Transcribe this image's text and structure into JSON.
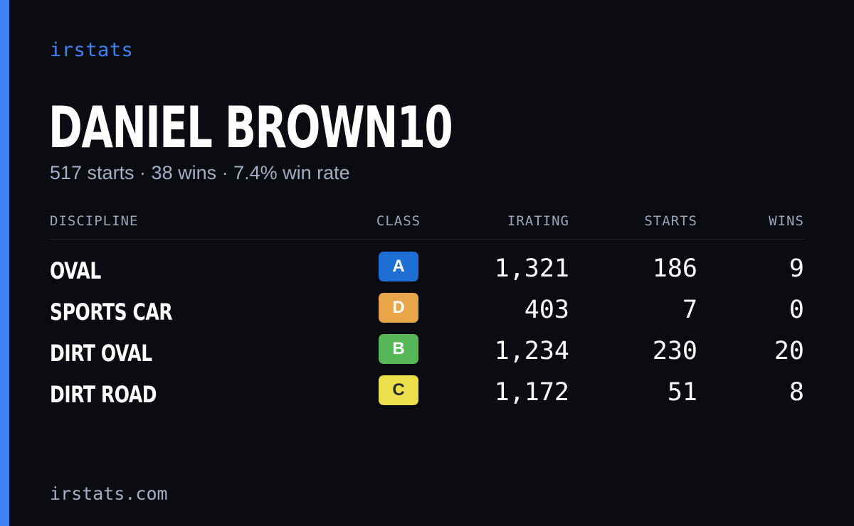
{
  "brand": {
    "name": "irstats"
  },
  "player": {
    "name": "DANIEL BROWN10",
    "summary": "517 starts · 38 wins · 7.4% win rate"
  },
  "table": {
    "headers": {
      "discipline": "DISCIPLINE",
      "class": "CLASS",
      "irating": "IRATING",
      "starts": "STARTS",
      "wins": "WINS"
    },
    "rows": [
      {
        "discipline": "OVAL",
        "class": "A",
        "class_color": "#1f6ed4",
        "class_text_color": "#ffffff",
        "irating": "1,321",
        "starts": "186",
        "wins": "9"
      },
      {
        "discipline": "SPORTS CAR",
        "class": "D",
        "class_color": "#e8a64a",
        "class_text_color": "#ffffff",
        "irating": "403",
        "starts": "7",
        "wins": "0"
      },
      {
        "discipline": "DIRT OVAL",
        "class": "B",
        "class_color": "#57b85a",
        "class_text_color": "#ffffff",
        "irating": "1,234",
        "starts": "230",
        "wins": "20"
      },
      {
        "discipline": "DIRT ROAD",
        "class": "C",
        "class_color": "#ebdf4a",
        "class_text_color": "#2a2a2a",
        "irating": "1,172",
        "starts": "51",
        "wins": "8"
      }
    ]
  },
  "footer": {
    "url": "irstats.com"
  },
  "colors": {
    "accent": "#3f82f4",
    "background": "#0a0c12",
    "muted_text": "#a3aec2"
  }
}
